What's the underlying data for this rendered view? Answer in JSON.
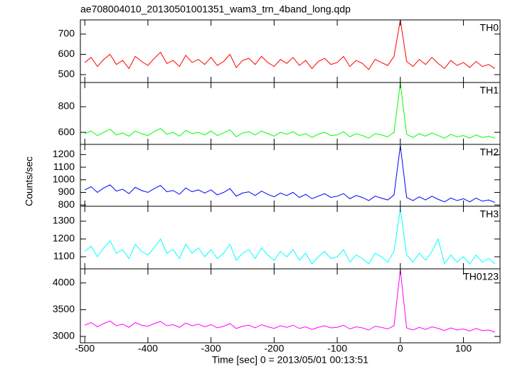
{
  "chart_data": {
    "type": "line",
    "title": "ae708004010_20130501001351_wam3_trn_4band_long.qdp",
    "xlabel": "Time [sec] 0 = 2013/05/01 00:13:51",
    "ylabel": "Counts/sec",
    "xlim": [
      -507,
      158
    ],
    "xticks": [
      -500,
      -400,
      -300,
      -200,
      -100,
      0,
      100
    ],
    "x": [
      -500,
      -490,
      -480,
      -470,
      -460,
      -450,
      -440,
      -430,
      -420,
      -410,
      -400,
      -390,
      -380,
      -370,
      -360,
      -350,
      -340,
      -330,
      -320,
      -310,
      -300,
      -290,
      -280,
      -270,
      -260,
      -250,
      -240,
      -230,
      -220,
      -210,
      -200,
      -190,
      -180,
      -170,
      -160,
      -150,
      -140,
      -130,
      -120,
      -110,
      -100,
      -90,
      -80,
      -70,
      -60,
      -50,
      -40,
      -30,
      -20,
      -10,
      0,
      10,
      20,
      30,
      40,
      50,
      60,
      70,
      80,
      90,
      100,
      110,
      120,
      130,
      140,
      150
    ],
    "panels": [
      {
        "name": "TH0",
        "color": "#ff0000",
        "ylim": [
          461,
          770
        ],
        "yticks": [
          500,
          600,
          700
        ],
        "values": [
          560,
          585,
          540,
          575,
          600,
          550,
          570,
          530,
          590,
          565,
          545,
          580,
          610,
          555,
          570,
          540,
          595,
          560,
          575,
          550,
          585,
          545,
          565,
          600,
          535,
          570,
          580,
          550,
          590,
          560,
          540,
          575,
          555,
          585,
          545,
          570,
          530,
          565,
          580,
          550,
          560,
          590,
          540,
          570,
          555,
          525,
          575,
          560,
          545,
          590,
          770,
          565,
          540,
          575,
          550,
          585,
          555,
          530,
          570,
          545,
          560,
          535,
          565,
          540,
          550,
          530
        ]
      },
      {
        "name": "TH1",
        "color": "#00ff00",
        "ylim": [
          506,
          989
        ],
        "yticks": [
          600,
          800
        ],
        "values": [
          590,
          610,
          575,
          600,
          625,
          580,
          595,
          570,
          610,
          590,
          575,
          605,
          630,
          585,
          600,
          570,
          615,
          590,
          600,
          580,
          610,
          575,
          595,
          620,
          565,
          595,
          605,
          580,
          610,
          590,
          570,
          600,
          585,
          605,
          575,
          590,
          560,
          585,
          600,
          575,
          580,
          605,
          565,
          590,
          575,
          555,
          590,
          580,
          565,
          600,
          985,
          585,
          560,
          590,
          570,
          595,
          575,
          555,
          585,
          565,
          575,
          555,
          580,
          560,
          570,
          555
        ]
      },
      {
        "name": "TH2",
        "color": "#0000ff",
        "ylim": [
          790,
          1281
        ],
        "yticks": [
          800,
          900,
          1000,
          1100,
          1200
        ],
        "values": [
          920,
          945,
          900,
          935,
          960,
          910,
          925,
          890,
          940,
          915,
          900,
          930,
          955,
          905,
          915,
          885,
          935,
          905,
          920,
          895,
          920,
          880,
          900,
          930,
          870,
          895,
          905,
          875,
          910,
          885,
          865,
          895,
          875,
          900,
          860,
          885,
          850,
          870,
          890,
          860,
          870,
          890,
          850,
          875,
          860,
          835,
          870,
          855,
          840,
          880,
          1270,
          860,
          835,
          865,
          840,
          870,
          845,
          825,
          855,
          835,
          850,
          825,
          855,
          830,
          840,
          820
        ]
      },
      {
        "name": "TH3",
        "color": "#00ffff",
        "ylim": [
          1032,
          1384
        ],
        "yticks": [
          1100,
          1200,
          1300
        ],
        "values": [
          1130,
          1160,
          1100,
          1150,
          1190,
          1120,
          1140,
          1090,
          1170,
          1130,
          1110,
          1150,
          1200,
          1120,
          1140,
          1090,
          1170,
          1120,
          1150,
          1100,
          1140,
          1090,
          1120,
          1170,
          1080,
          1120,
          1140,
          1090,
          1150,
          1110,
          1080,
          1130,
          1100,
          1140,
          1080,
          1120,
          1060,
          1100,
          1130,
          1090,
          1100,
          1140,
          1070,
          1110,
          1090,
          1060,
          1120,
          1100,
          1070,
          1130,
          1370,
          1110,
          1070,
          1120,
          1080,
          1130,
          1200,
          1060,
          1110,
          1070,
          1100,
          1060,
          1110,
          1070,
          1090,
          1060
        ]
      },
      {
        "name": "TH0123",
        "color": "#ff00ff",
        "ylim": [
          2881,
          4263
        ],
        "yticks": [
          3000,
          3500,
          4000
        ],
        "values": [
          3210,
          3260,
          3180,
          3240,
          3290,
          3200,
          3230,
          3170,
          3260,
          3210,
          3190,
          3240,
          3280,
          3200,
          3220,
          3170,
          3250,
          3200,
          3230,
          3180,
          3220,
          3160,
          3190,
          3240,
          3150,
          3190,
          3210,
          3160,
          3220,
          3180,
          3150,
          3200,
          3170,
          3210,
          3150,
          3180,
          3130,
          3170,
          3200,
          3160,
          3170,
          3210,
          3140,
          3180,
          3160,
          3120,
          3190,
          3170,
          3140,
          3200,
          4250,
          3160,
          3120,
          3170,
          3130,
          3180,
          3150,
          3110,
          3160,
          3120,
          3140,
          3100,
          3150,
          3110,
          3120,
          3080
        ]
      }
    ]
  }
}
